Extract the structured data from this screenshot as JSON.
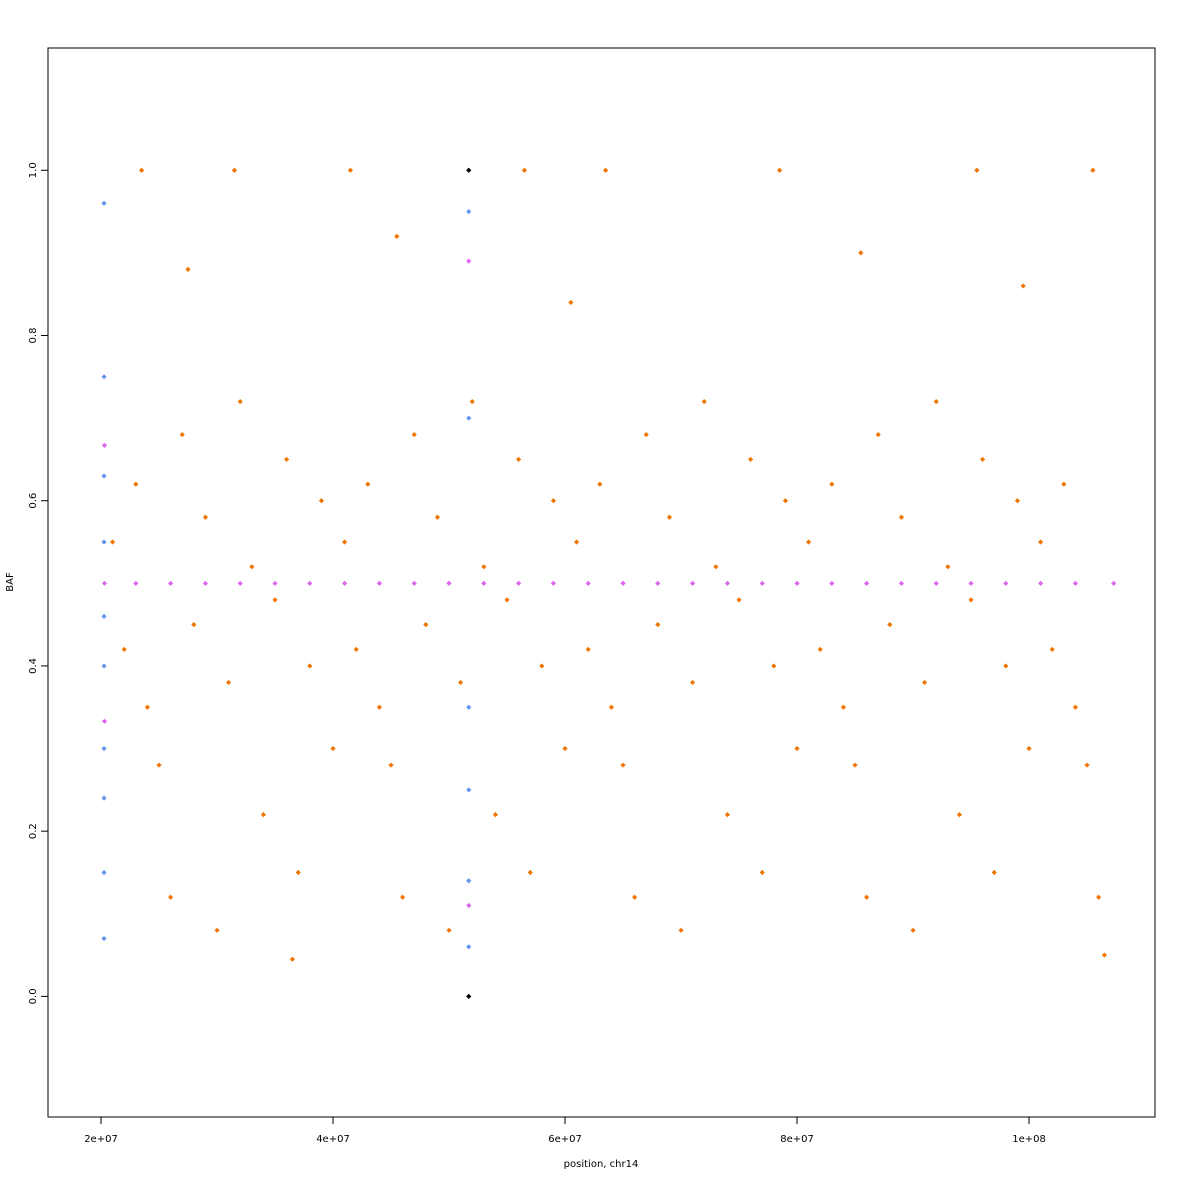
{
  "chart_data": {
    "type": "scatter",
    "xlabel": "position, chr14",
    "ylabel": "BAF",
    "xlim": [
      15430000,
      110860000
    ],
    "ylim": [
      -0.146,
      1.148
    ],
    "xticks": [
      {
        "value": 20000000,
        "label": "2e+07"
      },
      {
        "value": 40000000,
        "label": "4e+07"
      },
      {
        "value": 60000000,
        "label": "6e+07"
      },
      {
        "value": 80000000,
        "label": "8e+07"
      },
      {
        "value": 100000000,
        "label": "1e+08"
      }
    ],
    "yticks": [
      {
        "value": 0,
        "label": "0.0"
      },
      0.2,
      0.4,
      0.6,
      0.8,
      {
        "value": 1,
        "label": "1.0"
      }
    ],
    "series": [
      {
        "name": "orange",
        "color": "#ee7600",
        "x": [
          21000000,
          22000000,
          23000000,
          24000000,
          25000000,
          26000000,
          27000000,
          28000000,
          29000000,
          30000000,
          31000000,
          32000000,
          33000000,
          34000000,
          35000000,
          36000000,
          37000000,
          38000000,
          39000000,
          40000000,
          41000000,
          42000000,
          43000000,
          44000000,
          45000000,
          46000000,
          47000000,
          48000000,
          49000000,
          50000000,
          51000000,
          52000000,
          53000000,
          54000000,
          55000000,
          56000000,
          57000000,
          58000000,
          59000000,
          60000000,
          61000000,
          62000000,
          63000000,
          64000000,
          65000000,
          66000000,
          67000000,
          68000000,
          69000000,
          70000000,
          71000000,
          72000000,
          73000000,
          74000000,
          75000000,
          76000000,
          77000000,
          78000000,
          79000000,
          80000000,
          81000000,
          82000000,
          83000000,
          84000000,
          85000000,
          86000000,
          87000000,
          88000000,
          89000000,
          90000000,
          91000000,
          92000000,
          93000000,
          94000000,
          95000000,
          96000000,
          97000000,
          98000000,
          99000000,
          100000000,
          101000000,
          102000000,
          103000000,
          104000000,
          105000000,
          106000000,
          23500000,
          31500000,
          41500000,
          56500000,
          63500000,
          78500000,
          95500000,
          105500000,
          27500000,
          45500000,
          60500000,
          85500000,
          99500000,
          36500000,
          106500000
        ],
        "y": [
          0.55,
          0.42,
          0.62,
          0.35,
          0.28,
          0.12,
          0.68,
          0.45,
          0.58,
          0.08,
          0.38,
          0.72,
          0.52,
          0.22,
          0.48,
          0.65,
          0.15,
          0.4,
          0.6,
          0.3,
          0.55,
          0.42,
          0.62,
          0.35,
          0.28,
          0.12,
          0.68,
          0.45,
          0.58,
          0.08,
          0.38,
          0.72,
          0.52,
          0.22,
          0.48,
          0.65,
          0.15,
          0.4,
          0.6,
          0.3,
          0.55,
          0.42,
          0.62,
          0.35,
          0.28,
          0.12,
          0.68,
          0.45,
          0.58,
          0.08,
          0.38,
          0.72,
          0.52,
          0.22,
          0.48,
          0.65,
          0.15,
          0.4,
          0.6,
          0.3,
          0.55,
          0.42,
          0.62,
          0.35,
          0.28,
          0.12,
          0.68,
          0.45,
          0.58,
          0.08,
          0.38,
          0.72,
          0.52,
          0.22,
          0.48,
          0.65,
          0.15,
          0.4,
          0.6,
          0.3,
          0.55,
          0.42,
          0.62,
          0.35,
          0.28,
          0.12,
          1,
          1,
          1,
          1,
          1,
          1,
          1,
          1,
          0.88,
          0.92,
          0.84,
          0.9,
          0.86,
          0.045,
          0.05
        ]
      },
      {
        "name": "blue",
        "color": "#6495ed",
        "x": [
          20260000,
          20260000,
          20260000,
          20260000,
          20260000,
          20260000,
          20260000,
          20260000,
          20260000,
          20260000,
          51700000,
          51700000,
          51700000,
          51700000,
          51700000,
          51700000
        ],
        "y": [
          0.07,
          0.15,
          0.24,
          0.3,
          0.4,
          0.46,
          0.55,
          0.63,
          0.75,
          0.96,
          0.06,
          0.14,
          0.25,
          0.35,
          0.7,
          0.95
        ]
      },
      {
        "name": "magenta",
        "color": "#dd66ee",
        "x": [
          20300000,
          23000000,
          26000000,
          29000000,
          32000000,
          35000000,
          38000000,
          41000000,
          44000000,
          47000000,
          50000000,
          53000000,
          56000000,
          59000000,
          62000000,
          65000000,
          68000000,
          71000000,
          74000000,
          77000000,
          80000000,
          83000000,
          86000000,
          89000000,
          92000000,
          95000000,
          98000000,
          101000000,
          104000000,
          107300000,
          20300000,
          20300000,
          51700000,
          51700000
        ],
        "y": [
          0.5,
          0.5,
          0.5,
          0.5,
          0.5,
          0.5,
          0.5,
          0.5,
          0.5,
          0.5,
          0.5,
          0.5,
          0.5,
          0.5,
          0.5,
          0.5,
          0.5,
          0.5,
          0.5,
          0.5,
          0.5,
          0.5,
          0.5,
          0.5,
          0.5,
          0.5,
          0.5,
          0.5,
          0.5,
          0.5,
          0.333,
          0.667,
          0.89,
          0.11
        ]
      },
      {
        "name": "black",
        "color": "#000000",
        "x": [
          51700000,
          51700000
        ],
        "y": [
          1,
          0
        ]
      }
    ]
  }
}
